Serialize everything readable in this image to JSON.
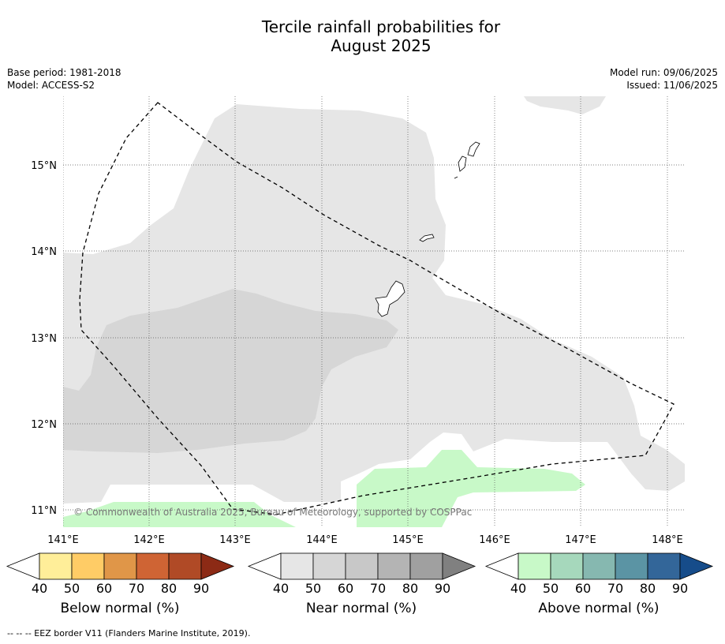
{
  "title_line1": "Tercile rainfall probabilities for",
  "title_line2": "August 2025",
  "meta_left": {
    "base_period": "Base period: 1981-2018",
    "model": "Model: ACCESS-S2"
  },
  "meta_right": {
    "model_run": "Model run: 09/06/2025",
    "issued": "Issued: 11/06/2025"
  },
  "map": {
    "lat_labels": [
      "15°N",
      "14°N",
      "13°N",
      "12°N",
      "11°N"
    ],
    "lon_labels": [
      "141°E",
      "142°E",
      "143°E",
      "144°E",
      "145°E",
      "146°E",
      "147°E",
      "148°E"
    ],
    "copyright": "© Commonwealth of Australia 2025, Bureau of Meteorology, supported by COSPPac"
  },
  "colorbars": [
    {
      "label": "Below normal (%)",
      "ticks": [
        "40",
        "50",
        "60",
        "70",
        "80",
        "90"
      ],
      "colors": [
        "#ffffff",
        "#ffee99",
        "#ffcc66",
        "#e09648",
        "#cf6434",
        "#b04a26",
        "#8c2a15"
      ]
    },
    {
      "label": "Near normal (%)",
      "ticks": [
        "40",
        "50",
        "60",
        "70",
        "80",
        "90"
      ],
      "colors": [
        "#ffffff",
        "#e6e6e6",
        "#d6d6d6",
        "#c8c8c8",
        "#b4b4b4",
        "#a0a0a0",
        "#808080"
      ]
    },
    {
      "label": "Above normal (%)",
      "ticks": [
        "40",
        "50",
        "60",
        "70",
        "80",
        "90"
      ],
      "colors": [
        "#ffffff",
        "#c8f9c8",
        "#a6d8bc",
        "#86b8b0",
        "#5b94a4",
        "#336699",
        "#164c8a"
      ]
    }
  ],
  "footer": "--  --  -- EEZ border V11 (Flanders Marine Institute, 2019)."
}
